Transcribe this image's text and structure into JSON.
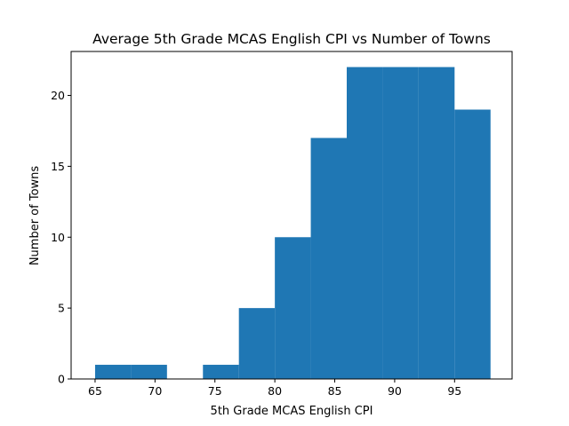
{
  "chart_data": {
    "type": "bar",
    "title": "Average 5th Grade MCAS English CPI vs Number of Towns",
    "xlabel": "5th Grade MCAS English CPI",
    "ylabel": "Number of Towns",
    "xlim": [
      63.0,
      99.8
    ],
    "ylim": [
      0,
      23.1
    ],
    "xticks": [
      65,
      70,
      75,
      80,
      85,
      90,
      95
    ],
    "yticks": [
      0,
      5,
      10,
      15,
      20
    ],
    "bins": [
      {
        "x0": 65.0,
        "x1": 68.0,
        "value": 1
      },
      {
        "x0": 68.0,
        "x1": 71.0,
        "value": 1
      },
      {
        "x0": 71.0,
        "x1": 74.0,
        "value": 0
      },
      {
        "x0": 74.0,
        "x1": 77.0,
        "value": 1
      },
      {
        "x0": 77.0,
        "x1": 80.0,
        "value": 5
      },
      {
        "x0": 80.0,
        "x1": 83.0,
        "value": 10
      },
      {
        "x0": 83.0,
        "x1": 86.0,
        "value": 17
      },
      {
        "x0": 86.0,
        "x1": 89.0,
        "value": 22
      },
      {
        "x0": 89.0,
        "x1": 92.0,
        "value": 22
      },
      {
        "x0": 92.0,
        "x1": 95.0,
        "value": 22
      },
      {
        "x0": 95.0,
        "x1": 98.0,
        "value": 19
      }
    ],
    "bar_color": "#1f77b4",
    "grid": false,
    "legend": "none"
  }
}
